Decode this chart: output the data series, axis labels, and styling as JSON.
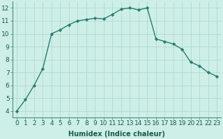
{
  "x": [
    0,
    1,
    2,
    3,
    4,
    5,
    6,
    7,
    8,
    9,
    10,
    11,
    12,
    13,
    14,
    15,
    16,
    17,
    18,
    19,
    20,
    21,
    22,
    23
  ],
  "y": [
    4.0,
    4.9,
    6.0,
    7.3,
    10.0,
    10.3,
    10.7,
    11.0,
    11.1,
    11.2,
    11.15,
    11.5,
    11.9,
    12.0,
    11.85,
    12.0,
    9.6,
    9.4,
    9.2,
    8.8,
    7.8,
    7.5,
    7.0,
    6.7
  ],
  "line_color": "#2a7d6e",
  "marker": "D",
  "markersize": 2.2,
  "linewidth": 1.0,
  "bg_color": "#ceeee8",
  "grid_color": "#a8d8cc",
  "xlabel": "Humidex (Indice chaleur)",
  "xlabel_fontsize": 7,
  "xlim": [
    -0.5,
    23.5
  ],
  "ylim": [
    3.5,
    12.5
  ],
  "xticks": [
    0,
    1,
    2,
    3,
    4,
    5,
    6,
    7,
    8,
    9,
    10,
    11,
    12,
    13,
    14,
    15,
    16,
    17,
    18,
    19,
    20,
    21,
    22,
    23
  ],
  "yticks": [
    4,
    5,
    6,
    7,
    8,
    9,
    10,
    11,
    12
  ],
  "tick_fontsize": 6.5,
  "spine_color": "#4a9080",
  "axis_text_color": "#1a5a50"
}
